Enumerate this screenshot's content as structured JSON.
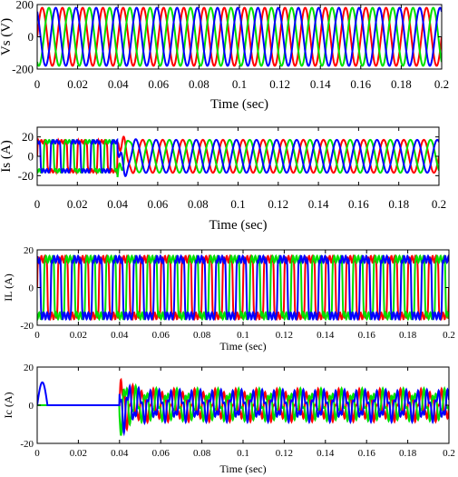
{
  "colors": {
    "red": "#ff0000",
    "green": "#00e000",
    "blue": "#0000ff",
    "axis": "#000000"
  },
  "chart_data": [
    {
      "type": "line",
      "ylabel": "Vs (V)",
      "xlabel": "Time (sec)",
      "xlim": [
        0,
        0.2
      ],
      "ylim": [
        -200,
        200
      ],
      "xticks": [
        "0",
        "0.02",
        "0.04",
        "0.06",
        "0.08",
        "0.1",
        "0.12",
        "0.14",
        "0.16",
        "0.18",
        "0.2"
      ],
      "yticks": [
        "200",
        "0",
        "-200"
      ],
      "series": [
        {
          "color": "red",
          "waveform": "sine",
          "amplitude": 180,
          "frequency_hz": 100,
          "phase_deg": 0
        },
        {
          "color": "green",
          "waveform": "sine",
          "amplitude": 180,
          "frequency_hz": 100,
          "phase_deg": -120
        },
        {
          "color": "blue",
          "waveform": "sine",
          "amplitude": 180,
          "frequency_hz": 100,
          "phase_deg": 120
        }
      ]
    },
    {
      "type": "line",
      "ylabel": "Is (A)",
      "xlabel": "Time (sec)",
      "xlim": [
        0,
        0.2
      ],
      "ylim": [
        -30,
        30
      ],
      "xticks": [
        "0",
        "0.02",
        "0.04",
        "0.06",
        "0.08",
        "0.1",
        "0.12",
        "0.14",
        "0.16",
        "0.18",
        "0.2"
      ],
      "yticks": [
        "20",
        "0",
        "-20"
      ],
      "event_time": 0.04,
      "before_event": {
        "waveform": "square",
        "amplitude": 15,
        "frequency_hz": 100
      },
      "after_event": {
        "waveform": "sine",
        "amplitude": 17,
        "frequency_hz": 100
      },
      "series": [
        {
          "color": "red",
          "phase_deg": 0
        },
        {
          "color": "green",
          "phase_deg": -120
        },
        {
          "color": "blue",
          "phase_deg": 120
        }
      ]
    },
    {
      "type": "line",
      "ylabel": "IL (A)",
      "xlabel": "Time (sec)",
      "xlim": [
        0,
        0.2
      ],
      "ylim": [
        -20,
        20
      ],
      "xticks": [
        "0",
        "0.02",
        "0.04",
        "0.06",
        "0.08",
        "0.1",
        "0.12",
        "0.14",
        "0.16",
        "0.18",
        "0.2"
      ],
      "yticks": [
        "20",
        "0",
        "-20"
      ],
      "series": [
        {
          "color": "red",
          "waveform": "square",
          "amplitude": 15,
          "frequency_hz": 100,
          "phase_deg": 0
        },
        {
          "color": "green",
          "waveform": "square",
          "amplitude": 15,
          "frequency_hz": 100,
          "phase_deg": -120
        },
        {
          "color": "blue",
          "waveform": "square",
          "amplitude": 15,
          "frequency_hz": 100,
          "phase_deg": 120
        }
      ]
    },
    {
      "type": "line",
      "ylabel": "Ic (A)",
      "xlabel": "Time (sec)",
      "xlim": [
        0,
        0.2
      ],
      "ylim": [
        -20,
        20
      ],
      "xticks": [
        "0",
        "0.02",
        "0.04",
        "0.06",
        "0.08",
        "0.1",
        "0.12",
        "0.14",
        "0.16",
        "0.18",
        "0.2"
      ],
      "yticks": [
        "20",
        "0",
        "-20"
      ],
      "event_time": 0.04,
      "startup_pulse": {
        "color": "blue",
        "start": 0.0,
        "end": 0.005,
        "peak": 12
      },
      "after_event": {
        "waveform": "ripple",
        "amplitude": 8,
        "peak_at_event": 17,
        "frequency_hz": 100
      },
      "series": [
        {
          "color": "red",
          "phase_deg": 0
        },
        {
          "color": "green",
          "phase_deg": -120
        },
        {
          "color": "blue",
          "phase_deg": 120
        }
      ]
    }
  ]
}
